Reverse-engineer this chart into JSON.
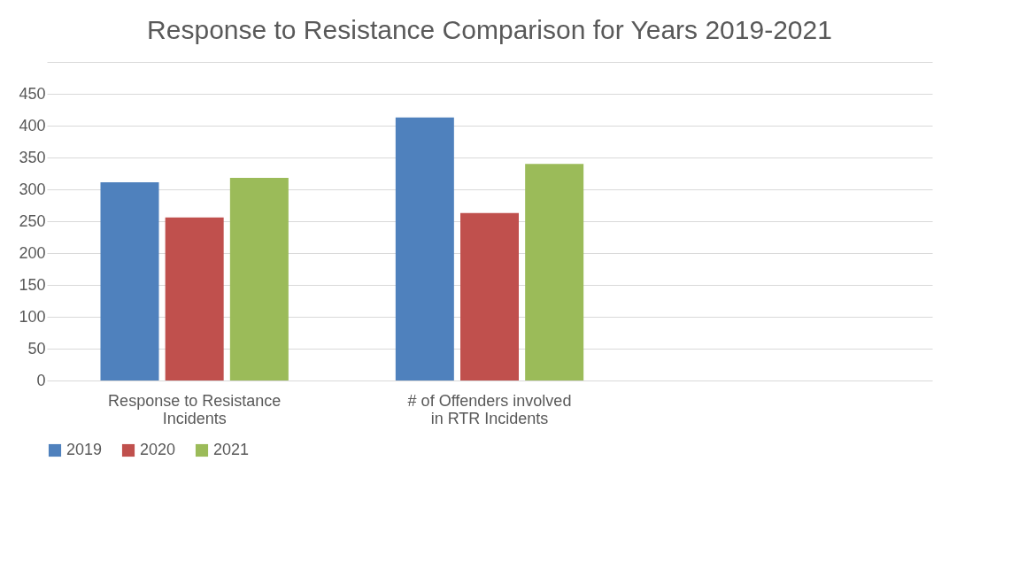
{
  "chart_data": {
    "type": "bar",
    "title": "Response to Resistance Comparison for Years 2019-2021",
    "categories": [
      "Response to Resistance Incidents",
      "# of Offenders involved in RTR Incidents",
      null
    ],
    "series": [
      {
        "name": "2019",
        "color": "#4f81bd",
        "values": [
          311,
          413,
          null
        ]
      },
      {
        "name": "2020",
        "color": "#c0504d",
        "values": [
          256,
          263,
          null
        ]
      },
      {
        "name": "2021",
        "color": "#9bbb59",
        "values": [
          318,
          340,
          null
        ]
      }
    ],
    "ylim": [
      0,
      500
    ],
    "yticks": [
      0,
      50,
      100,
      150,
      200,
      250,
      300,
      350,
      400,
      450,
      {
        "value": 500,
        "label": null
      }
    ],
    "grid": "y",
    "legend": "bottom"
  }
}
